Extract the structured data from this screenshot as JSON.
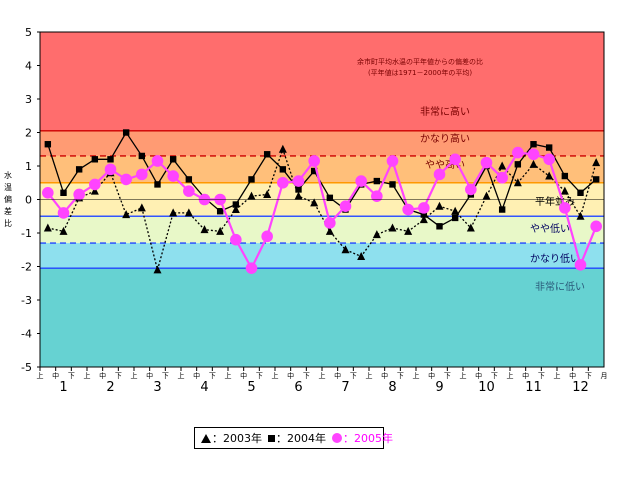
{
  "chart_data": {
    "type": "line",
    "title": "余市町平均水温の平年値からの偏差の比",
    "subtitle": "(平年値は1971－2000年の平均)",
    "ylabel": "水温偏差比",
    "ylim": [
      -5,
      5
    ],
    "yticks": [
      "5",
      "4",
      "3",
      "2",
      "1",
      "0",
      "-1",
      "-2",
      "-3",
      "-4",
      "-5"
    ],
    "periods": [
      "上",
      "中",
      "下"
    ],
    "months": [
      "1",
      "2",
      "3",
      "4",
      "5",
      "6",
      "7",
      "8",
      "9",
      "10",
      "11",
      "12"
    ],
    "month_unit": "月",
    "bands": [
      {
        "label": "非常に高い",
        "from": 2.05,
        "to": 5,
        "color": "#ff6d6d",
        "label_color": "#7a0000"
      },
      {
        "label": "かなり高い",
        "from": 1.3,
        "to": 2.05,
        "color": "#ff9b73",
        "label_color": "#7a0000"
      },
      {
        "label": "やや高い",
        "from": 0.5,
        "to": 1.3,
        "color": "#ffbf7a",
        "label_color": "#7a0000"
      },
      {
        "label": "平年並み",
        "from": -0.5,
        "to": 0.5,
        "color": "#fff0b3",
        "label_color": "#000000"
      },
      {
        "label": "やや低い",
        "from": -1.3,
        "to": -0.5,
        "color": "#e8f8c8",
        "label_color": "#000060"
      },
      {
        "label": "かなり低い",
        "from": -2.05,
        "to": -1.3,
        "color": "#8ee0ee",
        "label_color": "#000060"
      },
      {
        "label": "非常に低い",
        "from": -5,
        "to": -2.05,
        "color": "#66d2d2",
        "label_color": "#2a5a7a"
      }
    ],
    "thresholds": [
      {
        "value": 2.05,
        "color": "#cc0000",
        "dash": false
      },
      {
        "value": 1.3,
        "color": "#cc0000",
        "dash": true
      },
      {
        "value": 0.5,
        "color": "#ff9900",
        "dash": false
      },
      {
        "value": -0.5,
        "color": "#3355ff",
        "dash": false
      },
      {
        "value": -1.3,
        "color": "#2244ff",
        "dash": true
      },
      {
        "value": -2.05,
        "color": "#2244ff",
        "dash": false
      }
    ],
    "series": [
      {
        "name": "2003年",
        "marker": "triangle",
        "color": "#000000",
        "line": "dotted",
        "values": [
          -0.85,
          -0.95,
          0.05,
          0.25,
          0.8,
          -0.45,
          -0.25,
          -2.1,
          -0.4,
          -0.4,
          -0.9,
          -0.95,
          -0.3,
          0.1,
          0.15,
          1.5,
          0.1,
          -0.1,
          -0.95,
          -1.5,
          -1.7,
          -1.05,
          -0.85,
          -0.95,
          -0.6,
          -0.2,
          -0.35,
          -0.85,
          0.1,
          1.0,
          0.5,
          1.05,
          0.7,
          0.25,
          -0.5,
          1.1
        ]
      },
      {
        "name": "2004年",
        "marker": "square",
        "color": "#000000",
        "line": "solid",
        "values": [
          1.65,
          0.2,
          0.9,
          1.2,
          1.2,
          2.0,
          1.3,
          0.45,
          1.2,
          0.6,
          0.05,
          -0.35,
          -0.15,
          0.6,
          1.35,
          0.9,
          0.3,
          0.85,
          0.05,
          -0.3,
          0.45,
          0.55,
          0.45,
          -0.3,
          -0.45,
          -0.8,
          -0.55,
          0.15,
          1.0,
          -0.3,
          1.05,
          1.65,
          1.55,
          0.7,
          0.2,
          0.6
        ]
      },
      {
        "name": "2005年",
        "marker": "circle",
        "color": "#ff44ff",
        "line": "solid",
        "values": [
          0.2,
          -0.4,
          0.15,
          0.45,
          0.9,
          0.6,
          0.75,
          1.15,
          0.7,
          0.25,
          0.0,
          0.0,
          -1.2,
          -2.05,
          -1.1,
          0.5,
          0.55,
          1.15,
          -0.7,
          -0.2,
          0.55,
          0.1,
          1.15,
          -0.3,
          -0.25,
          0.75,
          1.2,
          0.3,
          1.1,
          0.65,
          1.4,
          1.35,
          1.2,
          -0.25,
          -1.95,
          -0.8
        ]
      }
    ],
    "legend": {
      "entries": [
        "2003年",
        "2004年",
        "2005年"
      ],
      "separator": "：",
      "placement": "bottom"
    }
  }
}
